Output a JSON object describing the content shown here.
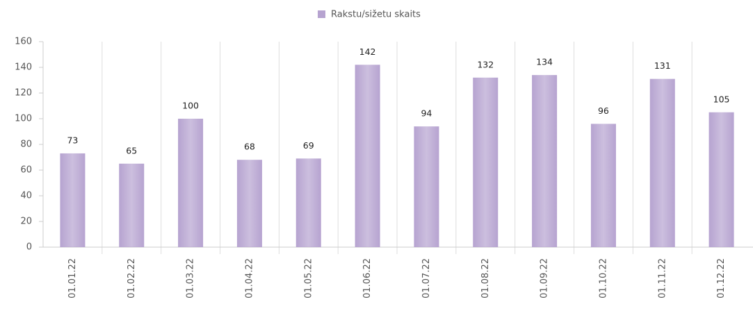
{
  "chart_data": {
    "type": "bar",
    "legend": "Rakstu/sižetu skaits",
    "categories": [
      "01.01.22",
      "01.02.22",
      "01.03.22",
      "01.04.22",
      "01.05.22",
      "01.06.22",
      "01.07.22",
      "01.08.22",
      "01.09.22",
      "01.10.22",
      "01.11.22",
      "01.12.22"
    ],
    "values": [
      73,
      65,
      100,
      68,
      69,
      142,
      94,
      132,
      134,
      96,
      131,
      105
    ],
    "color": "#b6a3d0",
    "ylim": [
      0,
      160
    ],
    "yticks": [
      0,
      20,
      40,
      60,
      80,
      100,
      120,
      140,
      160
    ],
    "grid": true
  }
}
